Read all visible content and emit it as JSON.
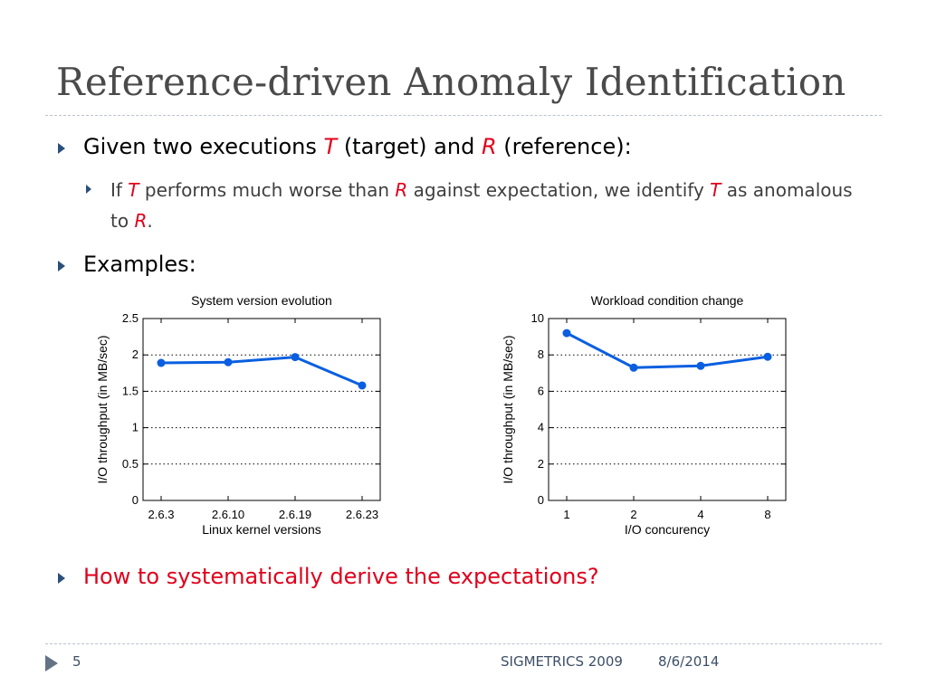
{
  "slide": {
    "title": "Reference-driven Anomaly Identification",
    "bullet1": {
      "pre": "Given two executions ",
      "t": "T",
      "mid": " (target) and ",
      "r": "R",
      "post": " (reference):"
    },
    "sub1": {
      "a": "If ",
      "t1": "T",
      "b": " performs much worse than ",
      "r1": "R",
      "c": " against expectation, we identify ",
      "t2": "T",
      "d": " as anomalous to ",
      "r2": "R",
      "e": "."
    },
    "bullet2": "Examples:",
    "bullet3": "How to systematically derive the expectations?",
    "footer": {
      "page": "5",
      "conference": "SIGMETRICS 2009",
      "date": "8/6/2014"
    },
    "colors": {
      "accent_red": "#e0001b",
      "series_blue": "#0a5fe0",
      "title_gray": "#4a4a4a",
      "bullet_navy": "#2b4f7a"
    }
  },
  "chart_data": [
    {
      "type": "line",
      "title": "System version evolution",
      "xlabel": "Linux kernel versions",
      "ylabel": "I/O throughput (in MB/sec)",
      "categories": [
        "2.6.3",
        "2.6.10",
        "2.6.19",
        "2.6.23"
      ],
      "series": [
        {
          "values": [
            1.89,
            1.9,
            1.97,
            1.58
          ]
        }
      ],
      "ylim": [
        0,
        2.5
      ],
      "yticks": [
        "0",
        "0.5",
        "1",
        "1.5",
        "2",
        "2.5"
      ],
      "grid": "dotted horizontal"
    },
    {
      "type": "line",
      "title": "Workload condition change",
      "xlabel": "I/O concurency",
      "ylabel": "I/O throughput (in MB/sec)",
      "categories": [
        "1",
        "2",
        "4",
        "8"
      ],
      "series": [
        {
          "values": [
            9.2,
            7.3,
            7.4,
            7.9
          ]
        }
      ],
      "ylim": [
        0,
        10
      ],
      "yticks": [
        "0",
        "2",
        "4",
        "6",
        "8",
        "10"
      ],
      "grid": "dotted horizontal"
    }
  ]
}
